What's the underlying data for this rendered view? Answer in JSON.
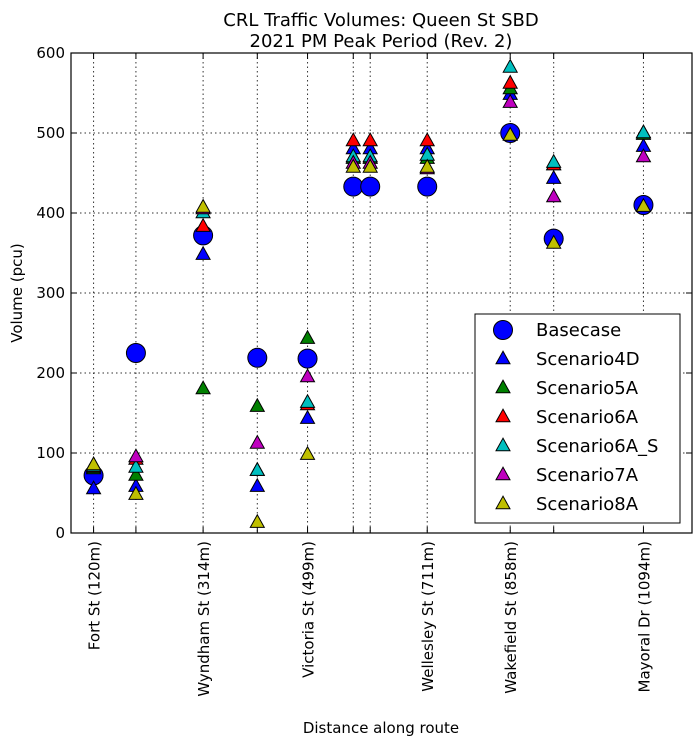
{
  "chart_data": {
    "type": "scatter",
    "title": [
      "CRL Traffic Volumes: Queen St SBD",
      "2021 PM Peak Period (Rev. 2)"
    ],
    "xlabel": "Distance along route",
    "ylabel": "Volume (pcu)",
    "ylim": [
      0,
      600
    ],
    "yticks": [
      0,
      100,
      200,
      300,
      400,
      500,
      600
    ],
    "xlim": [
      80,
      1180
    ],
    "grid": true,
    "legend_position": "lower-right",
    "x_gridlines": [
      120,
      195,
      314,
      410,
      499,
      580,
      610,
      711,
      858,
      935,
      1094
    ],
    "x_tick_labels": [
      {
        "x": 120,
        "label": "Fort St (120m)"
      },
      {
        "x": 314,
        "label": "Wyndham St (314m)"
      },
      {
        "x": 499,
        "label": "Victoria St (499m)"
      },
      {
        "x": 711,
        "label": "Wellesley St (711m)"
      },
      {
        "x": 858,
        "label": "Wakefield St (858m)"
      },
      {
        "x": 1094,
        "label": "Mayoral Dr (1094m)"
      }
    ],
    "series": [
      {
        "name": "Basecase",
        "marker": "circle",
        "color": "#0000ff",
        "points": [
          [
            120,
            72
          ],
          [
            195,
            225
          ],
          [
            314,
            372
          ],
          [
            410,
            219
          ],
          [
            499,
            218
          ],
          [
            580,
            433
          ],
          [
            610,
            433
          ],
          [
            711,
            433
          ],
          [
            858,
            500
          ],
          [
            935,
            368
          ],
          [
            1094,
            410
          ]
        ]
      },
      {
        "name": "Scenario4D",
        "marker": "triangle",
        "color": "#0000ff",
        "points": [
          [
            120,
            55
          ],
          [
            195,
            58
          ],
          [
            314,
            348
          ],
          [
            410,
            58
          ],
          [
            499,
            143
          ],
          [
            580,
            480
          ],
          [
            610,
            480
          ],
          [
            711,
            480
          ],
          [
            858,
            548
          ],
          [
            935,
            443
          ],
          [
            1094,
            483
          ]
        ]
      },
      {
        "name": "Scenario5A",
        "marker": "triangle",
        "color": "#008000",
        "points": [
          [
            120,
            80
          ],
          [
            195,
            72
          ],
          [
            314,
            180
          ],
          [
            410,
            158
          ],
          [
            499,
            243
          ],
          [
            580,
            468
          ],
          [
            610,
            468
          ],
          [
            711,
            468
          ],
          [
            858,
            555
          ],
          [
            935,
            460
          ],
          [
            1094,
            498
          ]
        ]
      },
      {
        "name": "Scenario6A",
        "marker": "triangle",
        "color": "#ff0000",
        "points": [
          [
            120,
            82
          ],
          [
            195,
            92
          ],
          [
            314,
            383
          ],
          [
            410,
            78
          ],
          [
            499,
            160
          ],
          [
            580,
            490
          ],
          [
            610,
            490
          ],
          [
            711,
            490
          ],
          [
            858,
            562
          ],
          [
            935,
            460
          ],
          [
            1094,
            500
          ]
        ]
      },
      {
        "name": "Scenario6A_S",
        "marker": "triangle",
        "color": "#00bfbf",
        "points": [
          [
            120,
            83
          ],
          [
            195,
            82
          ],
          [
            314,
            400
          ],
          [
            410,
            78
          ],
          [
            499,
            163
          ],
          [
            580,
            470
          ],
          [
            610,
            470
          ],
          [
            711,
            472
          ],
          [
            858,
            582
          ],
          [
            935,
            463
          ],
          [
            1094,
            500
          ]
        ]
      },
      {
        "name": "Scenario7A",
        "marker": "triangle",
        "color": "#bf00bf",
        "points": [
          [
            120,
            85
          ],
          [
            195,
            95
          ],
          [
            314,
            405
          ],
          [
            410,
            112
          ],
          [
            499,
            195
          ],
          [
            580,
            462
          ],
          [
            610,
            462
          ],
          [
            711,
            455
          ],
          [
            858,
            538
          ],
          [
            935,
            420
          ],
          [
            1094,
            470
          ]
        ]
      },
      {
        "name": "Scenario8A",
        "marker": "triangle",
        "color": "#bfbf00",
        "points": [
          [
            120,
            85
          ],
          [
            195,
            48
          ],
          [
            314,
            407
          ],
          [
            410,
            13
          ],
          [
            499,
            98
          ],
          [
            580,
            457
          ],
          [
            610,
            457
          ],
          [
            711,
            457
          ],
          [
            858,
            497
          ],
          [
            935,
            362
          ],
          [
            1094,
            408
          ]
        ]
      }
    ]
  }
}
